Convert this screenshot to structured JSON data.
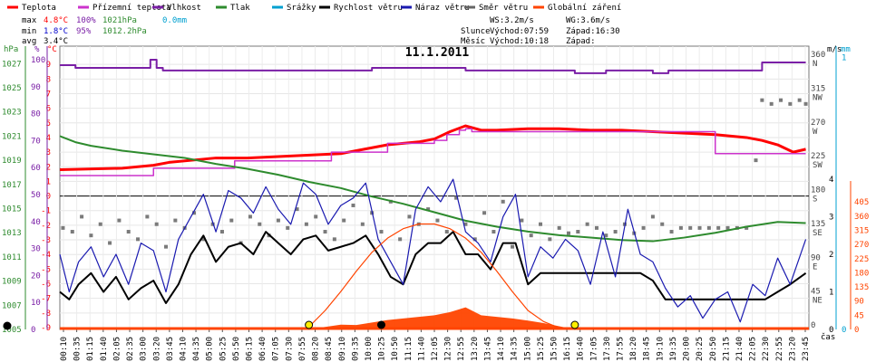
{
  "legend": [
    {
      "label": "Teplota",
      "color": "#ff0000"
    },
    {
      "label": "Přízemní teplota",
      "color": "#cc33cc"
    },
    {
      "label": "Vlhkost",
      "color": "#7a1fa6"
    },
    {
      "label": "Tlak",
      "color": "#2e8b2e"
    },
    {
      "label": "Srážky",
      "color": "#00a0d0"
    },
    {
      "label": "Rychlost větru",
      "color": "#000000"
    },
    {
      "label": "Náraz větru",
      "color": "#1a1ab0"
    },
    {
      "label": "Směr větru",
      "color": "#666666"
    },
    {
      "label": "Globální záření",
      "color": "#ff4400"
    }
  ],
  "stats": {
    "max": {
      "label": "max",
      "temp": "4.8°C",
      "hum": "100%",
      "press": "1021hPa",
      "rain": "0.0mm"
    },
    "min": {
      "label": "min",
      "temp": "1.8°C",
      "hum": "95%",
      "press": "1012.2hPa"
    },
    "avg": {
      "label": "avg",
      "temp": "3.4°C"
    }
  },
  "wind_info": {
    "ws": "WS:3.2m/s",
    "wg": "WG:3.6m/s"
  },
  "sun": {
    "label": "Slunce",
    "rise": "Východ:07:59",
    "set": "Západ:16:30"
  },
  "moon": {
    "label": "Měsíc",
    "rise": "Východ:10:18",
    "set": "Západ:"
  },
  "chart_data": {
    "type": "line",
    "title": "11.1.2011",
    "xlabel": "čas",
    "x_ticks": [
      "00:10",
      "00:35",
      "01:15",
      "01:40",
      "02:05",
      "02:35",
      "03:00",
      "03:20",
      "03:45",
      "04:10",
      "04:35",
      "05:00",
      "05:25",
      "05:50",
      "06:15",
      "06:40",
      "07:05",
      "07:30",
      "07:55",
      "08:20",
      "08:45",
      "09:10",
      "09:35",
      "10:00",
      "10:25",
      "10:50",
      "11:15",
      "11:40",
      "12:05",
      "12:30",
      "12:55",
      "13:20",
      "13:45",
      "14:10",
      "14:35",
      "15:00",
      "15:25",
      "15:50",
      "16:15",
      "16:40",
      "17:05",
      "17:30",
      "17:55",
      "18:20",
      "18:45",
      "19:10",
      "19:35",
      "20:00",
      "20:25",
      "20:50",
      "21:15",
      "21:40",
      "22:05",
      "22:30",
      "22:55",
      "23:20",
      "23:45"
    ],
    "axes": {
      "pressure": {
        "unit": "hPa",
        "ticks": [
          "1005",
          "1007",
          "1009",
          "1011",
          "1013",
          "1015",
          "1017",
          "1019",
          "1021",
          "1023",
          "1025",
          "1027"
        ]
      },
      "humidity": {
        "unit": "%",
        "ticks": [
          "0",
          "10",
          "20",
          "30",
          "40",
          "50",
          "60",
          "70",
          "80",
          "90",
          "100"
        ]
      },
      "temperature": {
        "unit": "°C",
        "ticks": [
          "-9",
          "-8",
          "-7",
          "-6",
          "-5",
          "-4",
          "-3",
          "-2",
          "-1",
          "0",
          "1",
          "2",
          "3",
          "4",
          "5",
          "6",
          "7",
          "8",
          "9"
        ]
      },
      "wind_dir": {
        "unit": "",
        "ticks": [
          "0",
          "45 NE",
          "90 E",
          "135 SE",
          "180 S",
          "225 SW",
          "270 W",
          "315 NW",
          "360 N"
        ]
      },
      "wind_speed": {
        "unit": "m/s",
        "ticks": [
          "0",
          "1",
          "2",
          "3",
          "4"
        ]
      },
      "rain": {
        "unit": "mm",
        "ticks": [
          "0",
          "1"
        ]
      },
      "radiation": {
        "unit": "",
        "ticks": [
          "0",
          "45",
          "90",
          "135",
          "180",
          "225",
          "270",
          "315",
          "360",
          "405"
        ]
      }
    },
    "series": [
      {
        "name": "Vlhkost",
        "axis": "humidity",
        "color": "#7a1fa6",
        "x": [
          0,
          0.5,
          2.5,
          2.9,
          3.1,
          3.3,
          4.5,
          7,
          10,
          12,
          13,
          15,
          16.5,
          17.5,
          18,
          19,
          19.5,
          20.5,
          22,
          22.5,
          23.9
        ],
        "y": [
          98,
          97,
          97,
          100,
          97,
          96,
          96,
          96,
          97,
          97,
          96,
          96,
          95,
          96,
          96,
          95,
          96,
          96,
          96,
          99,
          99
        ]
      },
      {
        "name": "Teplota",
        "axis": "temperature",
        "color": "#ff0000",
        "x": [
          0,
          2,
          3,
          3.5,
          4.5,
          5,
          6,
          7,
          8,
          9,
          9.5,
          10,
          10.5,
          11.5,
          12,
          12.5,
          13,
          13.5,
          14,
          15,
          16,
          17,
          18,
          19,
          20,
          21,
          21.5,
          22,
          22.5,
          23,
          23.5,
          23.9
        ],
        "y": [
          1.8,
          1.9,
          2.1,
          2.3,
          2.5,
          2.6,
          2.6,
          2.7,
          2.8,
          2.9,
          3.1,
          3.3,
          3.5,
          3.7,
          3.9,
          4.4,
          4.8,
          4.5,
          4.5,
          4.6,
          4.6,
          4.5,
          4.5,
          4.4,
          4.3,
          4.2,
          4.1,
          4.0,
          3.8,
          3.5,
          3.0,
          3.2
        ]
      },
      {
        "name": "Přízemní teplota",
        "axis": "temperature",
        "color": "#cc33cc",
        "x": [
          0,
          2.9,
          3.0,
          5.5,
          5.6,
          8.6,
          8.7,
          10.4,
          10.5,
          11.6,
          12.0,
          12.4,
          12.8,
          13.0,
          13.2,
          20.5,
          21,
          23.9
        ],
        "y": [
          1.4,
          1.4,
          1.9,
          1.9,
          2.4,
          2.4,
          3.0,
          3.0,
          3.6,
          3.6,
          3.8,
          4.2,
          4.5,
          4.6,
          4.4,
          4.4,
          2.9,
          2.9
        ]
      },
      {
        "name": "Tlak",
        "axis": "pressure",
        "color": "#2e8b2e",
        "x": [
          0,
          0.5,
          1,
          2,
          3,
          4,
          5,
          6,
          7,
          8,
          9,
          10,
          11,
          12,
          13,
          14,
          15,
          16,
          17,
          18,
          19,
          20,
          21,
          22,
          23,
          23.9
        ],
        "y": [
          1021,
          1020.5,
          1020.2,
          1019.8,
          1019.5,
          1019.2,
          1018.7,
          1018.3,
          1017.8,
          1017.2,
          1016.7,
          1016.0,
          1015.4,
          1014.7,
          1014.0,
          1013.5,
          1013.1,
          1012.8,
          1012.6,
          1012.4,
          1012.3,
          1012.6,
          1013.0,
          1013.5,
          1013.9,
          1013.8
        ]
      },
      {
        "name": "Rychlost větru",
        "axis": "wind_speed",
        "color": "#000000",
        "x": [
          0,
          0.3,
          0.6,
          1,
          1.4,
          1.8,
          2.2,
          2.6,
          3,
          3.4,
          3.8,
          4.2,
          4.6,
          5,
          5.4,
          5.8,
          6.2,
          6.6,
          7,
          7.4,
          7.8,
          8.2,
          8.6,
          9,
          9.4,
          9.8,
          10.2,
          10.6,
          11,
          11.4,
          11.8,
          12.2,
          12.6,
          13,
          13.4,
          13.8,
          14.2,
          14.6,
          15,
          15.4,
          15.8,
          16.2,
          16.6,
          17,
          17.4,
          17.8,
          18.2,
          18.6,
          19,
          19.4,
          19.8,
          20.2,
          20.6,
          21,
          21.4,
          21.8,
          22.2,
          22.6,
          23,
          23.4,
          23.9
        ],
        "y": [
          1.0,
          0.8,
          1.2,
          1.5,
          1.0,
          1.4,
          0.8,
          1.1,
          1.3,
          0.7,
          1.2,
          2.0,
          2.5,
          1.8,
          2.2,
          2.3,
          2.0,
          2.6,
          2.3,
          2.0,
          2.4,
          2.5,
          2.1,
          2.2,
          2.3,
          2.5,
          2.0,
          1.4,
          1.2,
          2.0,
          2.3,
          2.3,
          2.6,
          2.0,
          2.0,
          1.6,
          2.3,
          2.3,
          1.2,
          1.5,
          1.5,
          1.5,
          1.5,
          1.5,
          1.5,
          1.5,
          1.5,
          1.5,
          1.3,
          0.8,
          0.8,
          0.8,
          0.8,
          0.8,
          0.8,
          0.8,
          0.8,
          0.8,
          1.0,
          1.2,
          1.5
        ]
      },
      {
        "name": "Náraz větru",
        "axis": "wind_speed",
        "color": "#1a1ab0",
        "x": [
          0,
          0.3,
          0.6,
          1,
          1.4,
          1.8,
          2.2,
          2.6,
          3,
          3.4,
          3.8,
          4.2,
          4.6,
          5,
          5.4,
          5.8,
          6.2,
          6.6,
          7,
          7.4,
          7.8,
          8.2,
          8.6,
          9,
          9.4,
          9.8,
          10.2,
          10.6,
          11,
          11.4,
          11.8,
          12.2,
          12.6,
          13,
          13.4,
          13.8,
          14.2,
          14.6,
          15,
          15.4,
          15.8,
          16.2,
          16.6,
          17,
          17.4,
          17.8,
          18.2,
          18.6,
          19,
          19.4,
          19.8,
          20.2,
          20.6,
          21,
          21.4,
          21.8,
          22.2,
          22.6,
          23,
          23.4,
          23.9
        ],
        "y": [
          2.0,
          1.0,
          1.8,
          2.2,
          1.4,
          2.0,
          1.2,
          2.3,
          2.1,
          1.0,
          2.4,
          3.0,
          3.6,
          2.6,
          3.7,
          3.5,
          3.1,
          3.8,
          3.2,
          2.8,
          3.9,
          3.6,
          2.8,
          3.3,
          3.5,
          3.9,
          2.4,
          1.8,
          1.2,
          3.2,
          3.8,
          3.4,
          4.0,
          2.6,
          2.3,
          1.8,
          3.0,
          3.6,
          1.4,
          2.2,
          1.9,
          2.4,
          2.1,
          1.2,
          2.6,
          1.4,
          3.2,
          2.0,
          1.8,
          1.1,
          0.6,
          0.9,
          0.3,
          0.8,
          1.0,
          0.2,
          1.2,
          0.9,
          1.9,
          1.2,
          2.4
        ]
      },
      {
        "name": "Globální záření",
        "axis": "radiation",
        "color": "#ff4400",
        "fill": true,
        "x": [
          0,
          7.9,
          8.5,
          9,
          9.5,
          10,
          10.5,
          11,
          11.5,
          12,
          12.5,
          13,
          13.5,
          14,
          14.5,
          15,
          15.5,
          16,
          16.5,
          23.9
        ],
        "y": [
          0,
          0,
          8,
          15,
          14,
          22,
          30,
          35,
          40,
          45,
          55,
          70,
          45,
          40,
          35,
          28,
          20,
          10,
          0,
          0
        ]
      },
      {
        "name": "Maximální záření",
        "axis": "radiation",
        "color": "#ff4400",
        "x": [
          7.9,
          8.5,
          9,
          9.5,
          10,
          10.5,
          11,
          11.5,
          12,
          12.5,
          13,
          13.5,
          14,
          14.5,
          15,
          15.5,
          16,
          16.5
        ],
        "y": [
          0,
          60,
          120,
          185,
          245,
          290,
          320,
          335,
          335,
          320,
          290,
          245,
          185,
          120,
          60,
          25,
          5,
          0
        ]
      }
    ],
    "wind_dir_points": [
      [
        0.1,
        135
      ],
      [
        0.4,
        130
      ],
      [
        0.7,
        150
      ],
      [
        1.0,
        125
      ],
      [
        1.3,
        140
      ],
      [
        1.6,
        115
      ],
      [
        1.9,
        145
      ],
      [
        2.2,
        130
      ],
      [
        2.5,
        120
      ],
      [
        2.8,
        150
      ],
      [
        3.1,
        140
      ],
      [
        3.4,
        110
      ],
      [
        3.7,
        145
      ],
      [
        4.0,
        135
      ],
      [
        4.3,
        155
      ],
      [
        4.6,
        120
      ],
      [
        4.9,
        140
      ],
      [
        5.2,
        130
      ],
      [
        5.5,
        145
      ],
      [
        5.8,
        115
      ],
      [
        6.1,
        150
      ],
      [
        6.4,
        140
      ],
      [
        6.7,
        125
      ],
      [
        7.0,
        145
      ],
      [
        7.3,
        135
      ],
      [
        7.6,
        160
      ],
      [
        7.9,
        140
      ],
      [
        8.2,
        150
      ],
      [
        8.5,
        130
      ],
      [
        8.8,
        120
      ],
      [
        9.1,
        145
      ],
      [
        9.4,
        165
      ],
      [
        9.7,
        140
      ],
      [
        10.0,
        155
      ],
      [
        10.3,
        130
      ],
      [
        10.6,
        170
      ],
      [
        10.9,
        120
      ],
      [
        11.2,
        150
      ],
      [
        11.5,
        140
      ],
      [
        11.8,
        160
      ],
      [
        12.1,
        145
      ],
      [
        12.4,
        130
      ],
      [
        12.7,
        175
      ],
      [
        13.0,
        140
      ],
      [
        13.3,
        120
      ],
      [
        13.6,
        155
      ],
      [
        13.9,
        130
      ],
      [
        14.2,
        170
      ],
      [
        14.5,
        110
      ],
      [
        14.8,
        145
      ],
      [
        15.1,
        125
      ],
      [
        15.4,
        140
      ],
      [
        15.7,
        120
      ],
      [
        16.0,
        135
      ],
      [
        16.3,
        128
      ],
      [
        16.6,
        130
      ],
      [
        16.9,
        140
      ],
      [
        17.2,
        135
      ],
      [
        17.5,
        125
      ],
      [
        17.8,
        130
      ],
      [
        18.1,
        140
      ],
      [
        18.4,
        128
      ],
      [
        18.7,
        135
      ],
      [
        19.0,
        150
      ],
      [
        19.3,
        140
      ],
      [
        19.6,
        130
      ],
      [
        19.9,
        135
      ],
      [
        20.2,
        135
      ],
      [
        20.5,
        135
      ],
      [
        20.8,
        135
      ],
      [
        21.1,
        135
      ],
      [
        21.4,
        135
      ],
      [
        21.7,
        135
      ],
      [
        22.0,
        135
      ],
      [
        22.3,
        225
      ],
      [
        22.5,
        305
      ],
      [
        22.8,
        300
      ],
      [
        23.1,
        305
      ],
      [
        23.4,
        300
      ],
      [
        23.7,
        305
      ],
      [
        23.9,
        300
      ]
    ],
    "markers": [
      {
        "type": "sunrise",
        "x": 7.98
      },
      {
        "type": "moonrise",
        "x": 10.3
      },
      {
        "type": "sunset",
        "x": 16.5
      },
      {
        "type": "moonset",
        "x": 0.0
      }
    ]
  }
}
